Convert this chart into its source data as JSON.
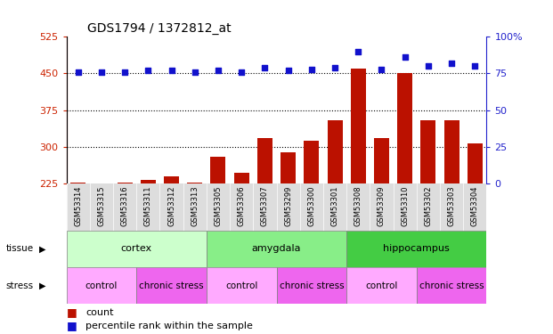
{
  "title": "GDS1794 / 1372812_at",
  "samples": [
    "GSM53314",
    "GSM53315",
    "GSM53316",
    "GSM53311",
    "GSM53312",
    "GSM53313",
    "GSM53305",
    "GSM53306",
    "GSM53307",
    "GSM53299",
    "GSM53300",
    "GSM53301",
    "GSM53308",
    "GSM53309",
    "GSM53310",
    "GSM53302",
    "GSM53303",
    "GSM53304"
  ],
  "counts": [
    228,
    226,
    228,
    232,
    240,
    228,
    280,
    248,
    318,
    290,
    312,
    355,
    460,
    318,
    450,
    355,
    355,
    308
  ],
  "percentiles_pct": [
    76,
    76,
    76,
    77,
    77,
    76,
    77,
    76,
    79,
    77,
    78,
    79,
    90,
    78,
    86,
    80,
    82,
    80
  ],
  "ymin": 225,
  "ymax": 525,
  "yticks": [
    225,
    300,
    375,
    450,
    525
  ],
  "pct_yticks": [
    0,
    25,
    50,
    75,
    100
  ],
  "bar_color": "#bb1100",
  "dot_color": "#1111cc",
  "bg_color": "#ffffff",
  "plot_bg": "#ffffff",
  "sample_name_bg": "#dddddd",
  "tissue_groups": [
    {
      "label": "cortex",
      "start": 0,
      "end": 6,
      "color": "#ccffcc"
    },
    {
      "label": "amygdala",
      "start": 6,
      "end": 12,
      "color": "#88ee88"
    },
    {
      "label": "hippocampus",
      "start": 12,
      "end": 18,
      "color": "#44cc44"
    }
  ],
  "stress_groups": [
    {
      "label": "control",
      "start": 0,
      "end": 3,
      "color": "#ffaaff"
    },
    {
      "label": "chronic stress",
      "start": 3,
      "end": 6,
      "color": "#ee66ee"
    },
    {
      "label": "control",
      "start": 6,
      "end": 9,
      "color": "#ffaaff"
    },
    {
      "label": "chronic stress",
      "start": 9,
      "end": 12,
      "color": "#ee66ee"
    },
    {
      "label": "control",
      "start": 12,
      "end": 15,
      "color": "#ffaaff"
    },
    {
      "label": "chronic stress",
      "start": 15,
      "end": 18,
      "color": "#ee66ee"
    }
  ],
  "legend_count_color": "#bb1100",
  "legend_pct_color": "#1111cc",
  "ylabel_color_left": "#cc2200",
  "ylabel_color_right": "#2222cc",
  "tissue_label_color": "#000000",
  "stress_label_color": "#000000"
}
